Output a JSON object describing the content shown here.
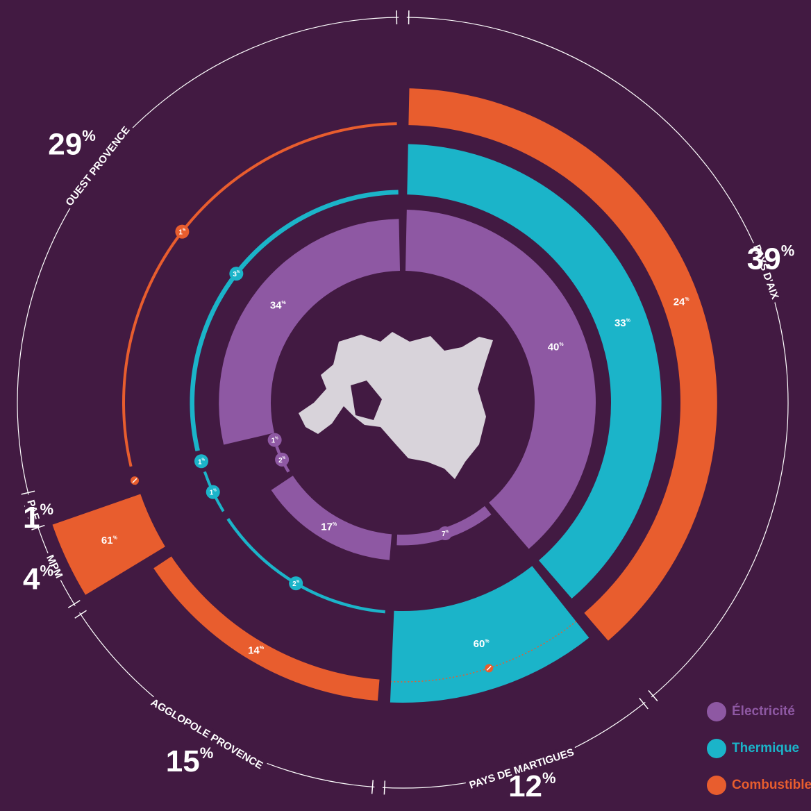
{
  "chart_data": {
    "type": "radial",
    "categories": [
      "PAYS D'AIX",
      "PAYS DE MARTIGUES",
      "AGGLOPOLE PROVENCE",
      "MPM",
      "PAE",
      "OUEST PROVENCE"
    ],
    "shares": [
      39,
      12,
      15,
      4,
      1,
      29
    ],
    "share_labels": [
      "39%",
      "12%",
      "15%",
      "4%",
      "1%",
      "29%"
    ],
    "series": [
      {
        "name": "Électricité",
        "color": "#8e58a3",
        "values": [
          40,
          7,
          17,
          2,
          1,
          34
        ],
        "value_labels": [
          "40%",
          "7%",
          "17%",
          "2%",
          "1%",
          "34%"
        ]
      },
      {
        "name": "Thermique",
        "color": "#1bb4c9",
        "values": [
          33,
          60,
          2,
          1,
          1,
          3
        ],
        "value_labels": [
          "33%",
          "60%",
          "2%",
          "1%",
          "1%",
          "3%"
        ]
      },
      {
        "name": "Combustible",
        "color": "#e85d2e",
        "values": [
          24,
          0,
          14,
          61,
          0,
          1
        ],
        "value_labels": [
          "24%",
          null,
          "14%",
          "61%",
          null,
          "1%"
        ]
      }
    ]
  }
}
